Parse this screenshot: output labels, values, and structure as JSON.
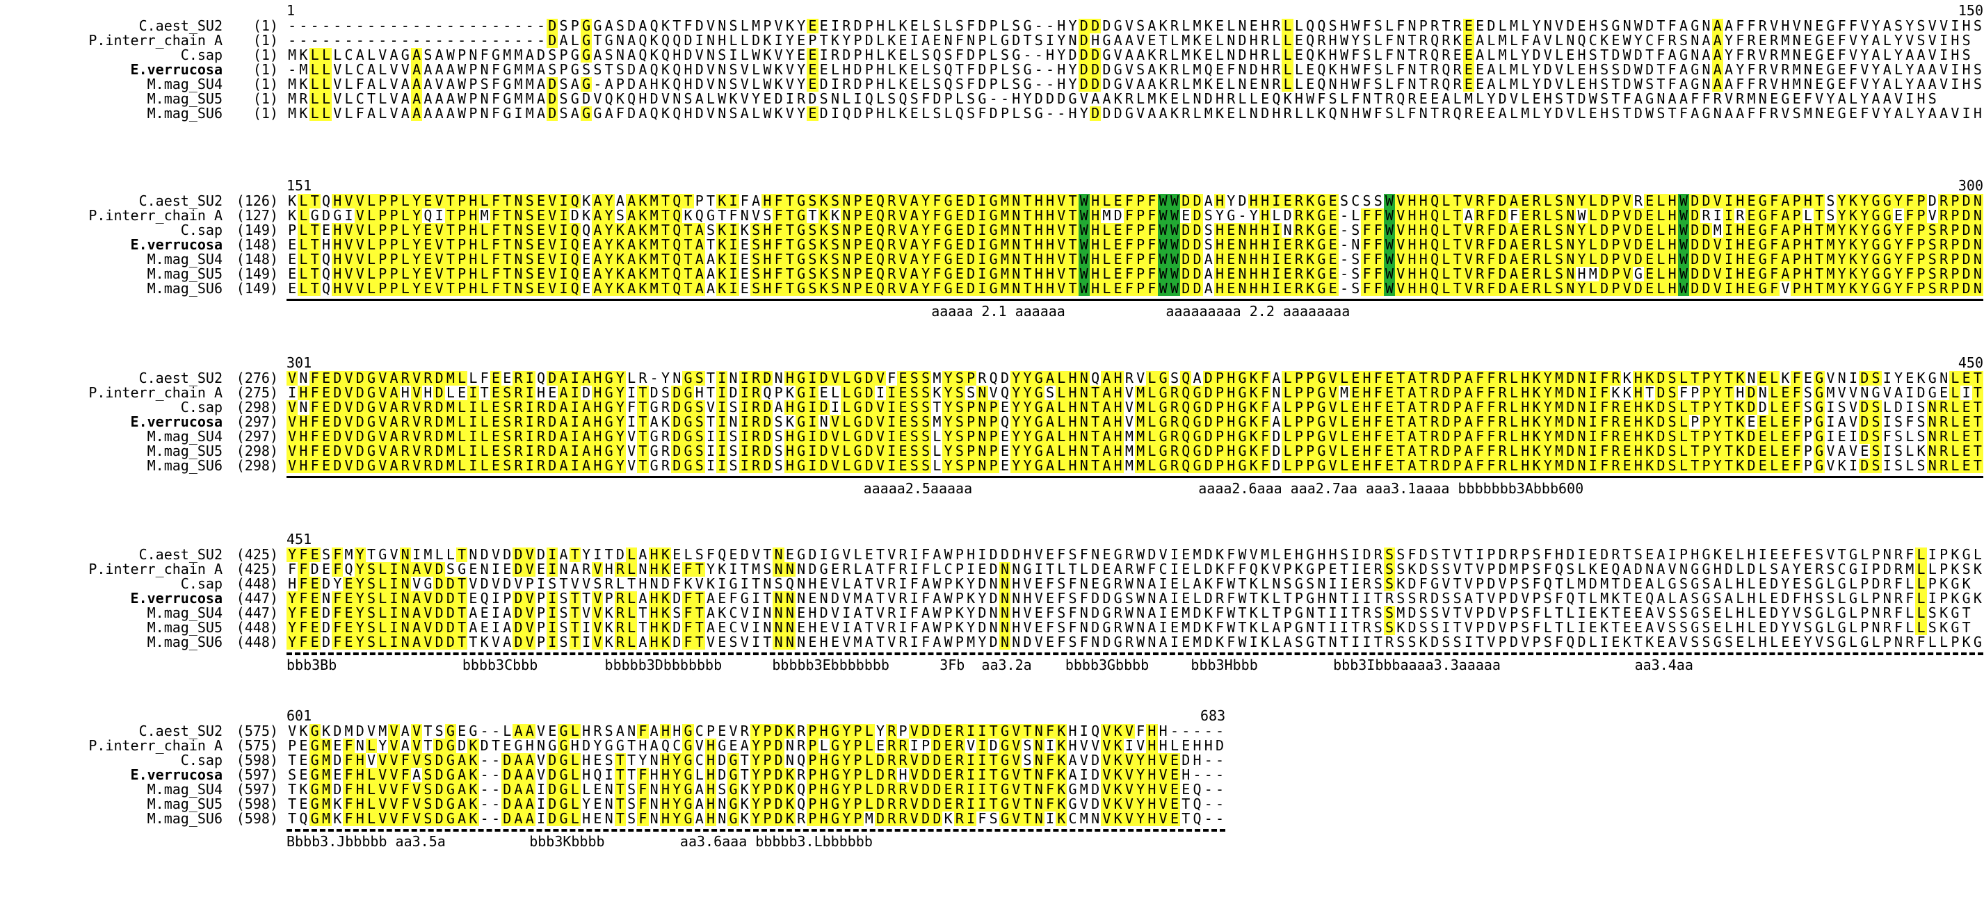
{
  "labels": [
    "C.aest_SU2",
    "P.interr_chain A",
    "C.sap",
    "E.verrucosa",
    "M.mag_SU4",
    "M.mag_SU5",
    "M.mag_SU6"
  ],
  "bold_label_index": 3,
  "colors": {
    "identical": "#ffff33",
    "conserved": "#22aa33",
    "glyco": "#33dddd",
    "special": "#dd33cc",
    "red_text": "#dd1111",
    "green_text": "#118833"
  },
  "blocks": [
    {
      "ruler_left": "1",
      "ruler_right": "150",
      "starts": [
        "(1)",
        "(1)",
        "(1)",
        "(1)",
        "(1)",
        "(1)",
        "(1)"
      ],
      "seqs": [
        "-----------------------DSPGGASDAQKTFDVNSLMPVKYEEIRDPHLKELSLSFDPLSG--HYDDDGVSAKRLMKELNEHRLLQQSHWFSLFNPRTREEDLMLYNVDEHSGNWDTFAGNAAFFRVHVNEGFFVYASYSVVIHS",
        "-----------------------DALGTGNAQKQQDINHLLDKIYEPTKYPDLKEIAENFNPLGDTSIYNDHGAAVETLMKELNDHRLLEQRHWYSLFNTRQRKEALMLFAVLNQCKEWYCFRSNAAYFRERMNEGEFVYALYVSVIHS",
        "MKLLLCALVAGASAWPNFGMMADSPGGASNAQKQHDVNSILWKVYEEIRDPHLKELSQSFDPLSG--HYDDDGVAAKRLMKELNDHRLLEQKHWFSLFNTRQREEALMLYDVLEHSTDWDTFAGNAAYFRVRMNEGEFVYALYAAVIHS",
        "-MLLVLCALVVAAAAWPNFGMMASPGSSTSDAQKQHDVNSVLWKVYEELHDPHLKELSQTFDPLSG--HYDDDGVSAKRLMQEFNDHRLLEQKHWFSLFNTRQREEALMLYDVLEHSSDWDTFAGNAAYFRVRMNEGEFVYALYAAVIHS",
        "MKLLVLFALVAAAVAWPSFGMMADSAG-APDAHKQHDVNSVLWKVYEDIRDPHLKELSQSFDPLSG--HYDDDGVAAKRLMKELNENRLLEQNHWFSLFNTRQREEALMLYDVLEHSTDWSTFAGNAAFFRVHMNEGEFVYALYAAVIHS",
        "MRLLVLCTLVAAAAAWPNFGMMADSGDVQKQHDVNSALWKVYEDIRDSNLIQLSQSFDPLSG--HYDDDGVAAKRLMKELNDHRLLEQKHWFSLFNTRQREEALMLYDVLEHSTDWSTFAGNAAFFRVRMNEGEFVYALYAAVIHS",
        "MKLLVLFALVAAAAAWPNFGIMADSAGGAFDAQKQHDVNSALWKVYEDIQDPHLKELSLQSFDPLSG--HYDDDGVAAKRLMKELNDHRLLKQNHWFSLFNTRQREEALMLYDVLEHSTDWSTFAGNAAFFRVSMNEGEFVYALYAAVIHS"
      ],
      "stars": "",
      "ss": ""
    },
    {
      "ruler_left": "151",
      "ruler_right": "300",
      "starts": [
        "(126)",
        "(127)",
        "(149)",
        "(148)",
        "(148)",
        "(149)",
        "(149)"
      ],
      "seqs": [
        "KLTQHVVLPPLYEVTPHLFTNSEVIQKAYAAKMTQTPTKIFAHFTGSKSNPEQRVAYFGEDIGMNTHHVTWHLEFPFWWDDAHYDHHIERKGESCSSWVHHQLTVRFDAERLSNYLDPVRELHWDDVIHEGFAPHTSYKYGGYFPDRPDN",
        "KLGDGIVLPPLYQITPHMFTNSEVIDKAYSAKMTQKQGTFNVSFTGTKKNPEQRVAYFGEDIGMNTHHVTWHMDFPFWWEDSYG-YHLDRKGE-LFFWVHHQLTARFDFERLSNWLDPVDELHWDRIIREGFAPLTSYKYGGEFPVRPDN",
        "PLTEHVVLPPLYEVTPHLFTNSEVIQQAYKAKMTQTASKIKSHFTGSKSNPEQRVAYFGEDIGMNTHHVTWHLEFPFWWDDSHENHHINRKGE-SFFWVHHQLTVRFDAERLSNYLDPVDELHWDDMIHEGFAPHTMYKYGGYFPSRPDN",
        "ELTHHVVLPPLYEVTPHLFTNSEVIQEAYKAKMTQTATKIESHFTGSKSNPEQRVAYFGEDIGMNTHHVTWHLEFPFWWDDSHENHHIERKGE-NFFWVHHQLTVRFDAERLSNYLDPVDELHWDDVIHEGFAPHTMYKYGGYFPSRPDN",
        "ELTQHVVLPPLYEVTPHLFTNSEVIQEAYKAKMTQTAAKIESHFTGSKSNPEQRVAYFGEDIGMNTHHVTWHLEFPFWWDDAHENHHIERKGE-SFFWVHHQLTVRFDAERLSNYLDPVDELHWDDVIHEGFAPHTMYKYGGYFPSRPDN",
        "ELTQHVVLPPLYEVTPHLFTNSEVIQEAYKAKMTQTAAKIESHFTGSKSNPEQRVAYFGEDIGMNTHHVTWHLEFPFWWDDAHENHHIERKGE-SFFWVHHQLTVRFDAERLSNHMDPVGELHWDDVIHEGFAPHTMYKYGGYFPSRPDN",
        "ELTQHVVLPPLYEVTPHLFTNSEVIQEAYKAKMTQTAAKIESHFTGSKSNPEQRVAYFGEDIGMNTHHVTWHLEFPFWWDDAHENHHIERKGE-SFFWVHHQLTVRFDAERLSNYLDPVDELHWDDVIHEGFVPHTMYKYGGYFPSRPDN"
      ],
      "stars": "*  *                                 *",
      "ss": "aaaaa 2.1 aaaaaa            aaaaaaaaa 2.2 aaaaaaaa"
    },
    {
      "ruler_left": "301",
      "ruler_right": "450",
      "starts": [
        "(276)",
        "(275)",
        "(298)",
        "(297)",
        "(297)",
        "(298)",
        "(298)"
      ],
      "seqs": [
        "VNFEDVDGVARVRDMLLFEERIQDAIAHGYLR-YNGSTINIRDNHGIDVLGDVFESSMYSPRQDYYGALHNQAHRVLGSQADPHGKFALPPGVLEHFETATRDPAFFRLHKYMDNIFRKHKDSLTPYTKNELKFEGVNIDSIYEKGNLET",
        "IHFEDVDGVAHVHDLEITESRIHEAIDHGYITDSDGHTIDIRQPKGIELLGDIIESSKYSSNVQYYGSLHNTAHVMLGRQGDPHGKFNLPPGVMEHFETATRDPAFFRLHKYMDNIFKKHTDSFPPYTHDNLEFSGMVVNGVAIDGELIT",
        "VNFEDVDGVARVRDMLILESRIRDAIAHGYFTGRDGSVISIRDAHGIDILGDVIESSTYSPNPEYYGALHNTAHVMLGRQGDPHGKFALPPGVLEHFETATRDPAFFRLHKYMDNIFREHKDSLTPYTKDDLEFSGISVDSLDISNRLET",
        "VHFEDVDGVARVRDMLILESRIRDAIAHGYITAKDGSTINIRDSKGINVLGDVIESSMYSPNPQYYGALHNTAHVMLGRQGDPHGKFALPPGVLEHFETATRDPAFFRLHKYMDNIFREHKDSLPPYTKEELEFPGIAVDSISFSNRLET",
        "VHFEDVDGVARVRDMLILESRIRDAIAHGYVTGRDGSIISIRDSHGIDVLGDVIESSLYSPNPEYYGALHNTAHMMLGRQGDPHGKFDLPPGVLEHFETATRDPAFFRLHKYMDNIFREHKDSLTPYTKDELEFPGIEIDSFSLSNRLET",
        "VHFEDVDGVARVRDMLILESRIRDAIAHGYVTGRDGSIISIRDSHGIDVLGDVIESSLYSPNPEYYGALHNTAHMMLGRQGDPHGKFDLPPGVLEHFETATRDPAFFRLHKYMDNIFREHKDSLTPYTKDELEFPGVAVESISLKNRLET",
        "VHFEDVDGVARVRDMLILESRIRDAIAHGYVTGRDGSIISIRDSHGIDVLGDVIESSLYSPNPEYYGALHNTAHMMLGRQGDPHGKFDLPPGVLEHFETATRDPAFFRLHKYMDNIFREHKDSLTPYTKDELEFPGVKIDSISLSNRLET"
      ],
      "stars": "*  *                             *",
      "ss": "aaaaa2.5aaaaa                           aaaa2.6aaa aaa2.7aa aaa3.1aaaa bbbbbbb3Abbb600"
    },
    {
      "ruler_left": "451",
      "ruler_right": "",
      "starts": [
        "(425)",
        "(425)",
        "(448)",
        "(447)",
        "(447)",
        "(448)",
        "(448)"
      ],
      "seqs": [
        "YFESFMYTGVNIMLLTNDVDDVDIATYITDLAHKELSFQEDVTNEGDIGVLETVRIFAWPHIDDDHVEFSFNEGRWDVIEMDKFWVMLEHGHHSIDRSSFDSTVTIPDRPSFHDIEDRTSEAIPHGKELHIEEFESVTGLPNRFLIPKGL",
        "FFDEFQYSLINAVDSGENIEDVEINARVHRLNHKEFTYKITMSNNNDGERLATFRIFLCPIEDNNGITLTLDEARWFCIELDKFFQKVPKGPETIERSSKDSSVTVPDMPSFQSLKEQADNAVNGGHDLDLSAYERSCGIPDRMLLPKSK",
        "HFEDYEYSLINVGDDTVDVDVPISTVVSRLTHNDFKVKIGITNSQNHEVLATVRIFAWPKYDNNHVEFSFNEGRWNAIELAKFWTKLNSGSNIIERSSKDFGVTVPDVPSFQTLMDMTDEALGSGSALHLEDYESGLGLPDRFLLPKGK",
        "YFENFEYSLINAVDDTEQIPDVPISTTVPRLAHKDFTAEFGITNNNENDVMATVRIFAWPKYDNNHVEFSFDDGSWNAIELDRFWTKLTPGHNTIITRSSRDSSATVPDVPSFQTLMKTEQALASGSALHLEDFHSSLGLPNRFLIPKGK",
        "YFEDFEYSLINAVDDTAEIADVPISTVVKRLTHKSFTAKCVINNNEHDVIATVRIFAWPKYDNNHVEFSFNDGRWNAIEMDKFWTKLTPGNTIITRSSMDSSVTVPDVPSFLTLIEKTEEAVSSGSELHLEDYVSGLGLPNRFLLSKGT",
        "YFEDFEYSLINAVDDTAEIADVPISTIVKRLTHKDFTAECVINNNEHEVIATVRIFAWPKYDNNHVEFSFNDGRWNAIEMDKFWTKLAPGNTIITRSSKDSSITVPDVPSFLTLIEKTEEAVSSGSELHLEDYVSGLGLPNRFLLSKGT",
        "YFEDFEYSLINAVDDTTKVADVPISTIVKRLAHKDFTVESVITNNNEHEVMATVRIFAWPMYDNNDVEFSFNDGRWNAIEMDKFWIKLASGTNTIITRSSKDSSITVPDVPSFQDLIEKTKEAVSSGSELHLEEYVSGLGLPNRFLLPKGT"
      ],
      "stars": "",
      "ss": "bbb3Bb               bbbb3Cbbb        bbbbb3Dbbbbbbb      bbbbb3Ebbbbbbb      3Fb  aa3.2a    bbbb3Gbbbb     bbb3Hbbb         bbb3Ibbbaaaa3.3aaaaa                aa3.4aa"
    },
    {
      "ruler_left": "601",
      "ruler_right": "683",
      "starts": [
        "(575)",
        "(575)",
        "(598)",
        "(597)",
        "(597)",
        "(598)",
        "(598)"
      ],
      "seqs": [
        "VKGKDMDVMVAVTSGEG--LAAVEGLHRSANFAHHGCPEVRYPDKRPHGYPLYRPVDDERIITGVTNFKHIQVKVFHH-----",
        "PEGMEFNLYVAVTDGDKDTEGHNGGHDYGGTHAQCGVHGEAYPDNRPLGYPLERRIPDERVIDGVSNIKHVVVKIVHHLEHHD",
        "TEGMDFHVVVFVSDGAK--DAAVDGLHESTTYNHYGCHDGTYPDNQPHGYPLDRRVDDERIITGVSNFKAVDVKVYHVEDH--",
        "SEGMEFHLVVFASDGAK--DAAVDGLHQITTFHHYGLHDGTYPDKRPHGYPLDRHVDDERIITGVTNFKAIDVKVYHVEH---",
        "TKGMDFHLVVFVSDGAK--DAAIDGLLENTSFNHYGAHSGKYPDKQPHGYPLDRRVDDERIITGVTNFKGMDVKVYHVEEQ--",
        "TEGMKFHLVVFVSDGAK--DAAIDGLYENTSFNHYGAHNGKYPDKQPHGYPLDRRVDDERIITGVTNFKGVDVKVYHVETQ--",
        "TQGMKFHLVVFVSDGAK--DAAIDGLHENTSFNHYGAHNGKYPDKRPHGYPMDRRVDDKRIFSGVTNIKCMNVKVYHVETQ--"
      ],
      "stars": "",
      "ss": "Bbbb3.Jbbbbb aa3.5a          bbb3Kbbbb         aa3.6aaa bbbbb3.Lbbbbbb"
    }
  ]
}
